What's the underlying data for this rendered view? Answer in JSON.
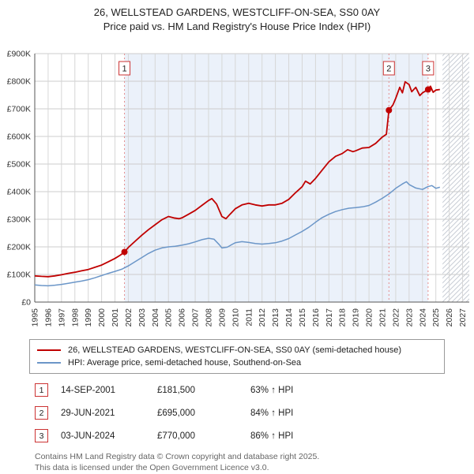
{
  "title": "26, WELLSTEAD GARDENS, WESTCLIFF-ON-SEA, SS0 0AY",
  "subtitle": "Price paid vs. HM Land Registry's House Price Index (HPI)",
  "chart_data": {
    "type": "line",
    "title": "26, WELLSTEAD GARDENS, WESTCLIFF-ON-SEA, SS0 0AY — Price paid vs. HPI",
    "xlabel": "",
    "ylabel": "",
    "xlim": [
      1995,
      2027.5
    ],
    "ylim": [
      0,
      900000
    ],
    "grid": true,
    "legend_position": "bottom",
    "x_axis": {
      "min": 1995,
      "max": 2027.5,
      "ticks": [
        1995,
        1996,
        1997,
        1998,
        1999,
        2000,
        2001,
        2002,
        2003,
        2004,
        2005,
        2006,
        2007,
        2008,
        2009,
        2010,
        2011,
        2012,
        2013,
        2014,
        2015,
        2016,
        2017,
        2018,
        2019,
        2020,
        2021,
        2022,
        2023,
        2024,
        2025,
        2026,
        2027
      ]
    },
    "y_axis": {
      "min_k": 0,
      "max_k": 900,
      "tick_step_k": 100,
      "tick_labels": [
        "£0",
        "£100K",
        "£200K",
        "£300K",
        "£400K",
        "£500K",
        "£600K",
        "£700K",
        "£800K",
        "£900K"
      ]
    },
    "units": "GBP_thousands",
    "series": [
      {
        "name": "26, WELLSTEAD GARDENS, WESTCLIFF-ON-SEA, SS0 0AY (semi-detached house)",
        "color": "#c00000",
        "width": 1.8,
        "points": [
          [
            1995,
            95
          ],
          [
            1995.5,
            93
          ],
          [
            1996,
            92
          ],
          [
            1996.5,
            95
          ],
          [
            1997,
            99
          ],
          [
            1997.5,
            104
          ],
          [
            1998,
            108
          ],
          [
            1998.5,
            113
          ],
          [
            1999,
            118
          ],
          [
            1999.5,
            126
          ],
          [
            2000,
            134
          ],
          [
            2000.5,
            146
          ],
          [
            2001,
            158
          ],
          [
            2001.4,
            170
          ],
          [
            2001.71,
            181.5
          ],
          [
            2002,
            198
          ],
          [
            2002.5,
            220
          ],
          [
            2003,
            242
          ],
          [
            2003.5,
            262
          ],
          [
            2004,
            280
          ],
          [
            2004.5,
            298
          ],
          [
            2005,
            310
          ],
          [
            2005.4,
            305
          ],
          [
            2005.8,
            302
          ],
          [
            2006,
            305
          ],
          [
            2006.5,
            318
          ],
          [
            2007,
            332
          ],
          [
            2007.5,
            350
          ],
          [
            2008,
            368
          ],
          [
            2008.25,
            375
          ],
          [
            2008.6,
            355
          ],
          [
            2009,
            310
          ],
          [
            2009.3,
            302
          ],
          [
            2009.6,
            318
          ],
          [
            2010,
            338
          ],
          [
            2010.5,
            352
          ],
          [
            2011,
            358
          ],
          [
            2011.5,
            352
          ],
          [
            2012,
            348
          ],
          [
            2012.5,
            352
          ],
          [
            2013,
            352
          ],
          [
            2013.5,
            358
          ],
          [
            2014,
            372
          ],
          [
            2014.5,
            396
          ],
          [
            2015,
            418
          ],
          [
            2015.25,
            438
          ],
          [
            2015.6,
            428
          ],
          [
            2016,
            448
          ],
          [
            2016.5,
            478
          ],
          [
            2017,
            508
          ],
          [
            2017.5,
            528
          ],
          [
            2018,
            538
          ],
          [
            2018.4,
            552
          ],
          [
            2018.8,
            545
          ],
          [
            2019,
            548
          ],
          [
            2019.5,
            558
          ],
          [
            2020,
            560
          ],
          [
            2020.5,
            575
          ],
          [
            2021,
            598
          ],
          [
            2021.3,
            608
          ],
          [
            2021.49,
            695
          ],
          [
            2021.8,
            715
          ],
          [
            2022,
            738
          ],
          [
            2022.3,
            778
          ],
          [
            2022.5,
            758
          ],
          [
            2022.7,
            798
          ],
          [
            2023,
            788
          ],
          [
            2023.2,
            762
          ],
          [
            2023.5,
            778
          ],
          [
            2023.8,
            748
          ],
          [
            2024,
            758
          ],
          [
            2024.42,
            770
          ],
          [
            2024.6,
            782
          ],
          [
            2024.8,
            760
          ],
          [
            2025,
            768
          ],
          [
            2025.3,
            770
          ]
        ]
      },
      {
        "name": "HPI: Average price, semi-detached house, Southend-on-Sea",
        "color": "#6b96c8",
        "width": 1.5,
        "points": [
          [
            1995,
            62
          ],
          [
            1995.5,
            60
          ],
          [
            1996,
            59
          ],
          [
            1996.5,
            61
          ],
          [
            1997,
            64
          ],
          [
            1997.5,
            68
          ],
          [
            1998,
            72
          ],
          [
            1998.5,
            76
          ],
          [
            1999,
            81
          ],
          [
            1999.5,
            88
          ],
          [
            2000,
            96
          ],
          [
            2000.5,
            104
          ],
          [
            2001,
            111
          ],
          [
            2001.5,
            119
          ],
          [
            2002,
            131
          ],
          [
            2002.5,
            146
          ],
          [
            2003,
            161
          ],
          [
            2003.5,
            176
          ],
          [
            2004,
            188
          ],
          [
            2004.5,
            196
          ],
          [
            2005,
            200
          ],
          [
            2005.5,
            202
          ],
          [
            2006,
            206
          ],
          [
            2006.5,
            211
          ],
          [
            2007,
            218
          ],
          [
            2007.5,
            226
          ],
          [
            2008,
            231
          ],
          [
            2008.4,
            228
          ],
          [
            2008.8,
            208
          ],
          [
            2009,
            196
          ],
          [
            2009.4,
            199
          ],
          [
            2009.8,
            210
          ],
          [
            2010,
            215
          ],
          [
            2010.5,
            219
          ],
          [
            2011,
            216
          ],
          [
            2011.5,
            212
          ],
          [
            2012,
            210
          ],
          [
            2012.5,
            212
          ],
          [
            2013,
            215
          ],
          [
            2013.5,
            221
          ],
          [
            2014,
            230
          ],
          [
            2014.5,
            243
          ],
          [
            2015,
            256
          ],
          [
            2015.5,
            271
          ],
          [
            2016,
            289
          ],
          [
            2016.5,
            306
          ],
          [
            2017,
            318
          ],
          [
            2017.5,
            328
          ],
          [
            2018,
            335
          ],
          [
            2018.5,
            340
          ],
          [
            2019,
            342
          ],
          [
            2019.5,
            345
          ],
          [
            2020,
            350
          ],
          [
            2020.5,
            362
          ],
          [
            2021,
            376
          ],
          [
            2021.5,
            392
          ],
          [
            2022,
            412
          ],
          [
            2022.5,
            428
          ],
          [
            2022.8,
            436
          ],
          [
            2023,
            426
          ],
          [
            2023.5,
            413
          ],
          [
            2024,
            408
          ],
          [
            2024.4,
            418
          ],
          [
            2024.7,
            422
          ],
          [
            2025,
            412
          ],
          [
            2025.3,
            416
          ]
        ]
      }
    ],
    "sales": [
      {
        "label": "1",
        "date": "14-SEP-2001",
        "x_year": 2001.71,
        "price_k": 181.5,
        "price_label": "£181,500",
        "hpi_label": "63% ↑ HPI"
      },
      {
        "label": "2",
        "date": "29-JUN-2021",
        "x_year": 2021.49,
        "price_k": 695,
        "price_label": "£695,000",
        "hpi_label": "84% ↑ HPI"
      },
      {
        "label": "3",
        "date": "03-JUN-2024",
        "x_year": 2024.42,
        "price_k": 770,
        "price_label": "£770,000",
        "hpi_label": "86% ↑ HPI"
      }
    ],
    "shaded_region": {
      "from": 2001.71,
      "to": 2024.42,
      "color": "#ebf1fa"
    },
    "hatched_region": {
      "from": 2025.5,
      "to": 2027.5
    },
    "colors": {
      "grid": "#cccccc",
      "axis": "#555555",
      "sale_line": "#e58c8c",
      "sale_box_border": "#cc3333",
      "price_line": "#c00000",
      "hpi_line": "#6b96c8"
    }
  },
  "footer": {
    "line1": "Contains HM Land Registry data © Crown copyright and database right 2025.",
    "line2": "This data is licensed under the Open Government Licence v3.0."
  }
}
